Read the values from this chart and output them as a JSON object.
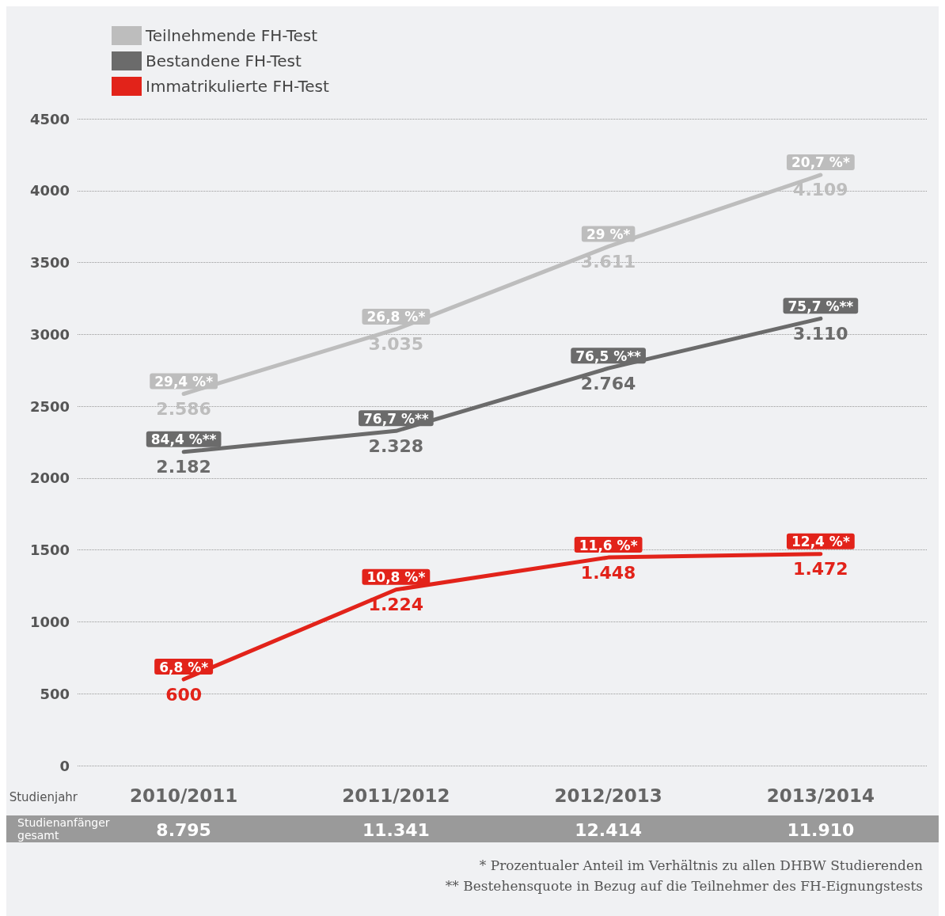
{
  "chart_data": {
    "type": "line",
    "xlabel": "Studienjahr",
    "categories": [
      "2010/2011",
      "2011/2012",
      "2012/2013",
      "2013/2014"
    ],
    "series": [
      {
        "name": "Teilnehmende FH-Test",
        "color": "#bdbdbd",
        "values": [
          2586,
          3035,
          3611,
          4109
        ],
        "value_labels": [
          "2.586",
          "3.035",
          "3.611",
          "4.109"
        ]
      },
      {
        "name": "Bestandene FH-Test",
        "color": "#6b6b6b",
        "values": [
          2182,
          2328,
          2764,
          3110
        ],
        "value_labels": [
          "2.182",
          "2.328",
          "2.764",
          "3.110"
        ]
      },
      {
        "name": "Immatrikulierte FH-Test",
        "color": "#e2231a",
        "values": [
          600,
          1224,
          1448,
          1472
        ],
        "value_labels": [
          "600",
          "1.224",
          "1.448",
          "1.472"
        ]
      }
    ],
    "ylim": [
      0,
      4500
    ],
    "yticks": [
      0,
      500,
      1000,
      1500,
      2000,
      2500,
      3000,
      3500,
      4000,
      4500
    ],
    "grid": "y",
    "legend": "top left",
    "line_style": "solid",
    "annotations": [
      {
        "text": "29,4 %*",
        "x": "2010/2011",
        "y": 2586
      },
      {
        "text": "26,8 %*",
        "x": "2011/2012",
        "y": 3035
      },
      {
        "text": "29 %*",
        "x": "2012/2013",
        "y": 3611
      },
      {
        "text": "20,7 %*",
        "x": "2013/2014",
        "y": 4109
      },
      {
        "text": "84,4 %**",
        "x": "2010/2011",
        "y": 2182
      },
      {
        "text": "76,7 %**",
        "x": "2011/2012",
        "y": 2328
      },
      {
        "text": "76,5 %**",
        "x": "2012/2013",
        "y": 2764
      },
      {
        "text": "75,7 %**",
        "x": "2013/2014",
        "y": 3110
      },
      {
        "text": "6,8 %*",
        "x": "2010/2011",
        "y": 600
      },
      {
        "text": "10,8 %*",
        "x": "2011/2012",
        "y": 1224
      },
      {
        "text": "11,6 %*",
        "x": "2012/2013",
        "y": 1448
      },
      {
        "text": "12,4 %*",
        "x": "2013/2014",
        "y": 1472
      },
      "Studienanfänger gesamt",
      "8.795",
      "11.341",
      "12.414",
      "11.910",
      "* Prozentualer Anteil im Verhältnis zu allen DHBW Studierenden",
      "** Bestehensquote in Bezug auf die Teilnehmer des FH-Eignungstests"
    ]
  }
}
